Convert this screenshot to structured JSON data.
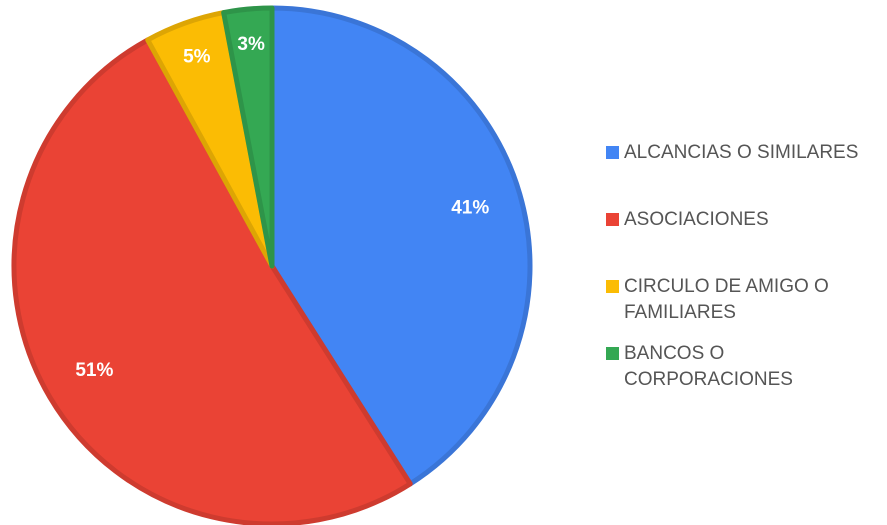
{
  "chart_data": {
    "type": "pie",
    "categories": [
      "ALCANCIAS O SIMILARES",
      "ASOCIACIONES",
      "CIRCULO DE AMIGO O FAMILIARES",
      "BANCOS O CORPORACIONES"
    ],
    "values": [
      41,
      51,
      5,
      3
    ],
    "value_labels": [
      "41%",
      "51%",
      "5%",
      "3%"
    ],
    "colors": [
      "#4285f4",
      "#ea4335",
      "#fbbc04",
      "#34a853"
    ],
    "legend": "right"
  }
}
